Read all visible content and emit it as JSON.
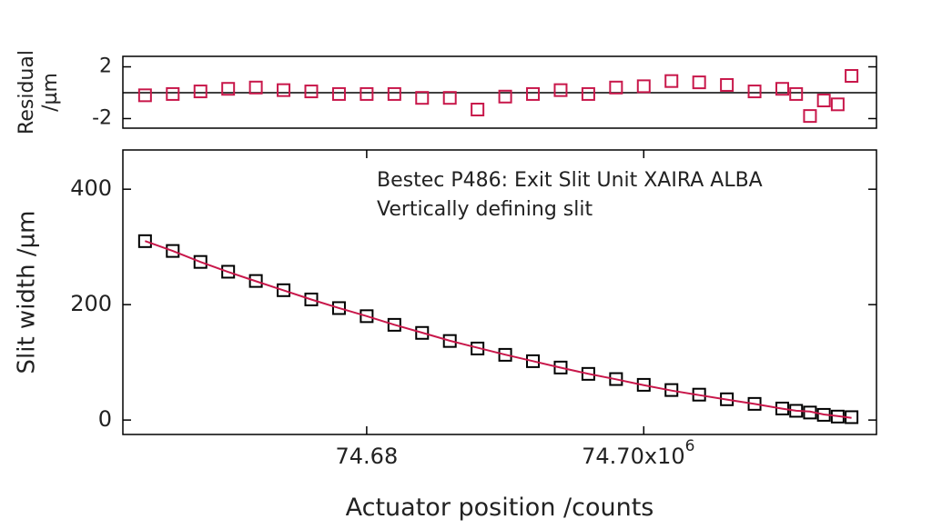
{
  "chart_data": [
    {
      "type": "scatter",
      "y_label": [
        "Residual",
        "/µm"
      ],
      "x": [
        74.664,
        74.666,
        74.668,
        74.67,
        74.672,
        74.674,
        74.676,
        74.678,
        74.68,
        74.682,
        74.684,
        74.686,
        74.688,
        74.69,
        74.692,
        74.694,
        74.696,
        74.698,
        74.7,
        74.702,
        74.704,
        74.706,
        74.708,
        74.71,
        74.711,
        74.712,
        74.713,
        74.714,
        74.715
      ],
      "series": [
        {
          "name": "Residual",
          "color": "#c8174a",
          "marker": "square",
          "values": [
            -0.2,
            -0.1,
            0.1,
            0.3,
            0.4,
            0.2,
            0.1,
            -0.1,
            -0.1,
            -0.1,
            -0.4,
            -0.4,
            -1.3,
            -0.3,
            -0.1,
            0.2,
            -0.1,
            0.4,
            0.5,
            0.9,
            0.8,
            0.6,
            0.1,
            0.3,
            -0.1,
            -1.8,
            -0.6,
            -0.9,
            1.3
          ]
        }
      ],
      "xlim": [
        74.6624,
        74.7168
      ],
      "ylim": [
        -2.74,
        2.81
      ],
      "yticks": [
        -2,
        2
      ],
      "hline": 0
    },
    {
      "type": "scatter",
      "y_label": [
        "Slit width /µm"
      ],
      "x_label": "Actuator position /counts",
      "annotation": [
        "Bestec P486: Exit Slit Unit XAIRA ALBA",
        "Vertically defining slit"
      ],
      "x": [
        74.664,
        74.666,
        74.668,
        74.67,
        74.672,
        74.674,
        74.676,
        74.678,
        74.68,
        74.682,
        74.684,
        74.686,
        74.688,
        74.69,
        74.692,
        74.694,
        74.696,
        74.698,
        74.7,
        74.702,
        74.704,
        74.706,
        74.708,
        74.71,
        74.711,
        74.712,
        74.713,
        74.714,
        74.715
      ],
      "series": [
        {
          "name": "Slit width",
          "color": "#000000",
          "marker": "square",
          "values": [
            310,
            293,
            274,
            257,
            241,
            225,
            209,
            194,
            180,
            165,
            151,
            137,
            124,
            113,
            102,
            91,
            80,
            71,
            61,
            52,
            44,
            36,
            28,
            20,
            16,
            13,
            9,
            6,
            5
          ]
        },
        {
          "name": "Fit",
          "color": "#c8174a",
          "marker": "line",
          "values": [
            310.2,
            293.1,
            273.9,
            256.7,
            240.6,
            224.8,
            208.9,
            194.1,
            180.1,
            165.1,
            151.4,
            137.4,
            125.3,
            113.3,
            102.1,
            90.8,
            80.1,
            70.6,
            60.5,
            51.1,
            43.2,
            35.4,
            27.9,
            19.7,
            16.1,
            14.8,
            9.6,
            6.9,
            3.7
          ]
        }
      ],
      "xlim": [
        74.6624,
        74.7168
      ],
      "ylim": [
        -25,
        468
      ],
      "xticks": [
        74.68,
        {
          "value": 74.7,
          "label": "74.70"
        }
      ],
      "x_multiplier": "x10",
      "x_exponent": "6",
      "yticks": [
        0,
        200,
        400
      ]
    }
  ]
}
